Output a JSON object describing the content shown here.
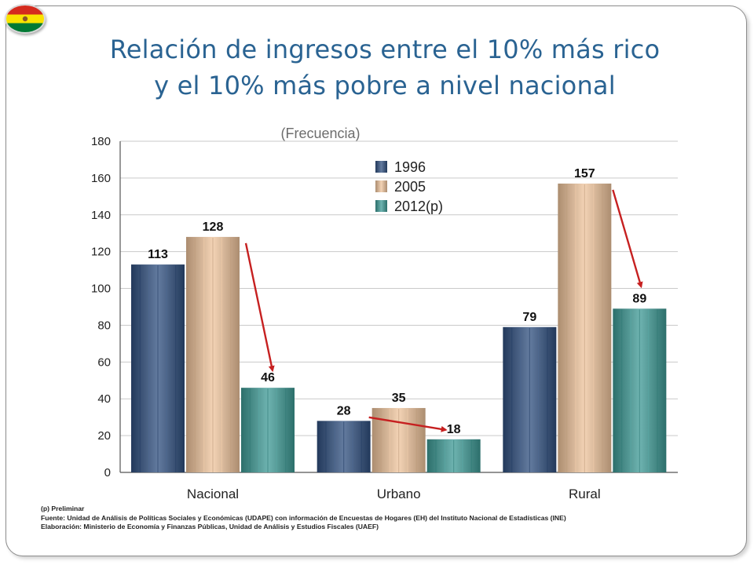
{
  "slide": {
    "title_line1": "Relación de ingresos entre el 10% más rico",
    "title_line2": "y el 10% más pobre a nivel nacional",
    "flag_icon": "bolivia-flag-icon"
  },
  "notes": {
    "preliminar": "(p) Preliminar",
    "fuente": "Fuente: Unidad de Análisis de Políticas Sociales y Económicas (UDAPE) con información de Encuestas de Hogares (EH) del Instituto Nacional de Estadísticas (INE)",
    "elaboracion": "Elaboración: Ministerio de Economía y Finanzas Públicas, Unidad de Análisis y Estudios Fiscales (UAEF)"
  },
  "colors": {
    "title": "#2a6392",
    "series_1996": "#2f4f7f",
    "series_2005": "#efc49c",
    "series_2012": "#3d9a95",
    "arrow": "#c62020",
    "grid": "#c9c9c9",
    "flag_red": "#d52b1e",
    "flag_yellow": "#f9e300",
    "flag_green": "#007934"
  },
  "chart_data": {
    "type": "bar",
    "title": "",
    "subtitle": "(Frecuencia)",
    "xlabel": "",
    "ylabel": "",
    "ylim": [
      0,
      180
    ],
    "yticks": [
      0,
      20,
      40,
      60,
      80,
      100,
      120,
      140,
      160,
      180
    ],
    "grid": true,
    "legend_position": "top-center",
    "categories": [
      "Nacional",
      "Urbano",
      "Rural"
    ],
    "series": [
      {
        "name": "1996",
        "values": [
          113,
          28,
          79
        ]
      },
      {
        "name": "2005",
        "values": [
          128,
          35,
          157
        ]
      },
      {
        "name": "2012(p)",
        "values": [
          46,
          18,
          89
        ]
      }
    ],
    "annotations": [
      {
        "type": "arrow",
        "category": "Nacional",
        "from_series": "2005",
        "to_series": "2012(p)"
      },
      {
        "type": "arrow",
        "category": "Urbano",
        "from_series": "2005",
        "to_series": "2012(p)"
      },
      {
        "type": "arrow",
        "category": "Rural",
        "from_series": "2005",
        "to_series": "2012(p)"
      }
    ]
  }
}
